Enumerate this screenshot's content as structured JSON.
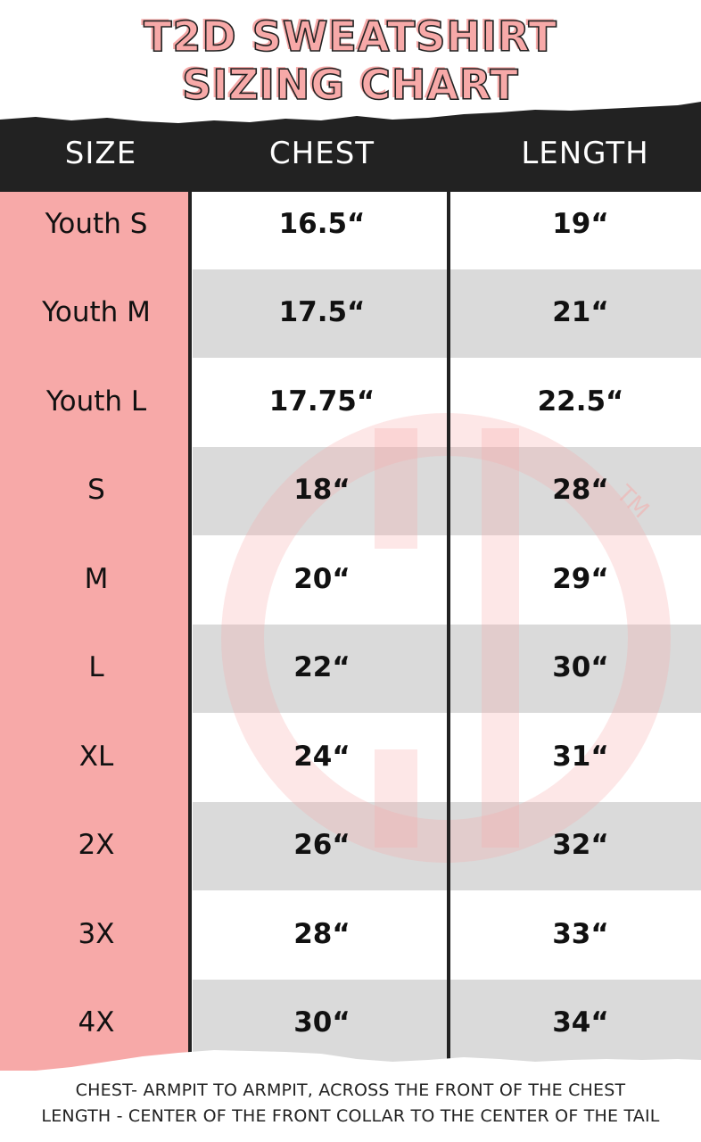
{
  "title": {
    "line1": "T2D SWEATSHIRT",
    "line2": "SIZING CHART"
  },
  "colors": {
    "accent_pink": "#f7a9a8",
    "header_black": "#222222",
    "row_gray": "#dadada",
    "watermark": "#f7a9a8"
  },
  "watermark": {
    "logo": "T2D",
    "trademark": "TM"
  },
  "chart_data": {
    "type": "table",
    "columns": [
      "SIZE",
      "CHEST",
      "LENGTH"
    ],
    "rows": [
      [
        "Youth S",
        "16.5“",
        "19“"
      ],
      [
        "Youth M",
        "17.5“",
        "21“"
      ],
      [
        "Youth L",
        "17.75“",
        "22.5“"
      ],
      [
        "S",
        "18“",
        "28“"
      ],
      [
        "M",
        "20“",
        "29“"
      ],
      [
        "L",
        "22“",
        "30“"
      ],
      [
        "XL",
        "24“",
        "31“"
      ],
      [
        "2X",
        "26“",
        "32“"
      ],
      [
        "3X",
        "28“",
        "33“"
      ],
      [
        "4X",
        "30“",
        "34“"
      ]
    ]
  },
  "footer": {
    "chest_note": "CHEST- ARMPIT TO ARMPIT, ACROSS THE FRONT OF THE CHEST",
    "length_note": "LENGTH - CENTER OF THE FRONT COLLAR TO THE CENTER OF THE TAIL"
  }
}
